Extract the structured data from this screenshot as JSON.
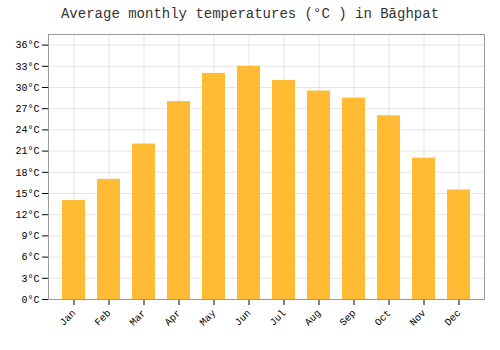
{
  "chart_data": {
    "type": "bar",
    "title": "Average monthly temperatures (°C ) in Bāghpat",
    "categories": [
      "Jan",
      "Feb",
      "Mar",
      "Apr",
      "May",
      "Jun",
      "Jul",
      "Aug",
      "Sep",
      "Oct",
      "Nov",
      "Dec"
    ],
    "values": [
      14,
      17,
      22,
      28,
      32,
      33,
      31,
      29.5,
      28.5,
      26,
      20,
      15.5
    ],
    "color": "#FFBB33",
    "ylim": [
      0,
      37.5
    ],
    "yticks": [
      {
        "value": 0,
        "label": "0°C"
      },
      {
        "value": 3,
        "label": "3°C"
      },
      {
        "value": 6,
        "label": "6°C"
      },
      {
        "value": 9,
        "label": "9°C"
      },
      {
        "value": 12,
        "label": "12°C"
      },
      {
        "value": 15,
        "label": "15°C"
      },
      {
        "value": 18,
        "label": "18°C"
      },
      {
        "value": 21,
        "label": "21°C"
      },
      {
        "value": 24,
        "label": "24°C"
      },
      {
        "value": 27,
        "label": "27°C"
      },
      {
        "value": 30,
        "label": "30°C"
      },
      {
        "value": 33,
        "label": "33°C"
      },
      {
        "value": 36,
        "label": "36°C"
      }
    ],
    "grid": true
  }
}
